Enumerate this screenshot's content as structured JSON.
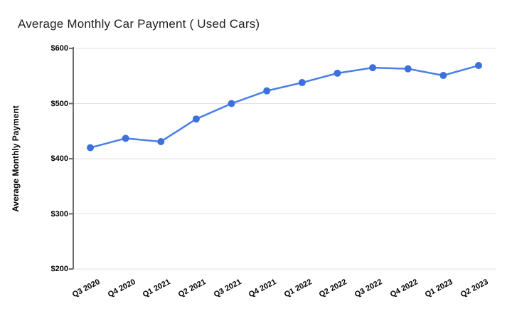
{
  "chart_data": {
    "type": "line",
    "title": "Average Monthly Car Payment ( Used Cars)",
    "xlabel": "",
    "ylabel": "Average Monthly Payment",
    "categories": [
      "Q3 2020",
      "Q4 2020",
      "Q1 2021",
      "Q2 2021",
      "Q3 2021",
      "Q4 2021",
      "Q1 2022",
      "Q2 2022",
      "Q3 2022",
      "Q4 2022",
      "Q1 2023",
      "Q2 2023"
    ],
    "series": [
      {
        "name": "Average Monthly Payment",
        "values": [
          420,
          437,
          431,
          472,
          500,
          523,
          538,
          555,
          565,
          563,
          551,
          569
        ]
      }
    ],
    "ylim": [
      200,
      600
    ],
    "ytick_interval": 100,
    "ytick_labels": [
      "$200",
      "$300",
      "$400",
      "$500",
      "$600"
    ],
    "grid": true,
    "legend": "none",
    "x_label_rotation_deg": -28,
    "line_color": "#4a7fe6",
    "marker_color": "#3c70dc",
    "gridline_color": "#e2e2e2",
    "axis_color": "#6b6b6b",
    "title_color": "#1f1f1f",
    "tick_text_color": "#000000"
  }
}
